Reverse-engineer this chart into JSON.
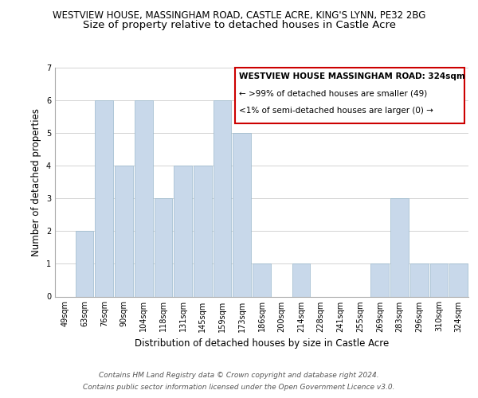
{
  "title_main": "WESTVIEW HOUSE, MASSINGHAM ROAD, CASTLE ACRE, KING'S LYNN, PE32 2BG",
  "title_sub": "Size of property relative to detached houses in Castle Acre",
  "xlabel": "Distribution of detached houses by size in Castle Acre",
  "ylabel": "Number of detached properties",
  "categories": [
    "49sqm",
    "63sqm",
    "76sqm",
    "90sqm",
    "104sqm",
    "118sqm",
    "131sqm",
    "145sqm",
    "159sqm",
    "173sqm",
    "186sqm",
    "200sqm",
    "214sqm",
    "228sqm",
    "241sqm",
    "255sqm",
    "269sqm",
    "283sqm",
    "296sqm",
    "310sqm",
    "324sqm"
  ],
  "values": [
    0,
    2,
    6,
    4,
    6,
    3,
    4,
    4,
    6,
    5,
    1,
    0,
    1,
    0,
    0,
    0,
    1,
    3,
    1,
    1,
    1
  ],
  "bar_color": "#c8d8ea",
  "bar_edge_color": "#9ab8cc",
  "box_outline_color": "#cc0000",
  "ylim": [
    0,
    7
  ],
  "yticks": [
    0,
    1,
    2,
    3,
    4,
    5,
    6,
    7
  ],
  "annotation_title": "WESTVIEW HOUSE MASSINGHAM ROAD: 324sqm",
  "annotation_line1": "← >99% of detached houses are smaller (49)",
  "annotation_line2": "<1% of semi-detached houses are larger (0) →",
  "footer1": "Contains HM Land Registry data © Crown copyright and database right 2024.",
  "footer2": "Contains public sector information licensed under the Open Government Licence v3.0.",
  "bg_color": "#ffffff",
  "grid_color": "#cccccc",
  "title_fontsize": 8.5,
  "subtitle_fontsize": 9.5,
  "axis_label_fontsize": 8.5,
  "tick_fontsize": 7,
  "footer_fontsize": 6.5,
  "annot_title_fontsize": 7.5,
  "annot_text_fontsize": 7.5
}
